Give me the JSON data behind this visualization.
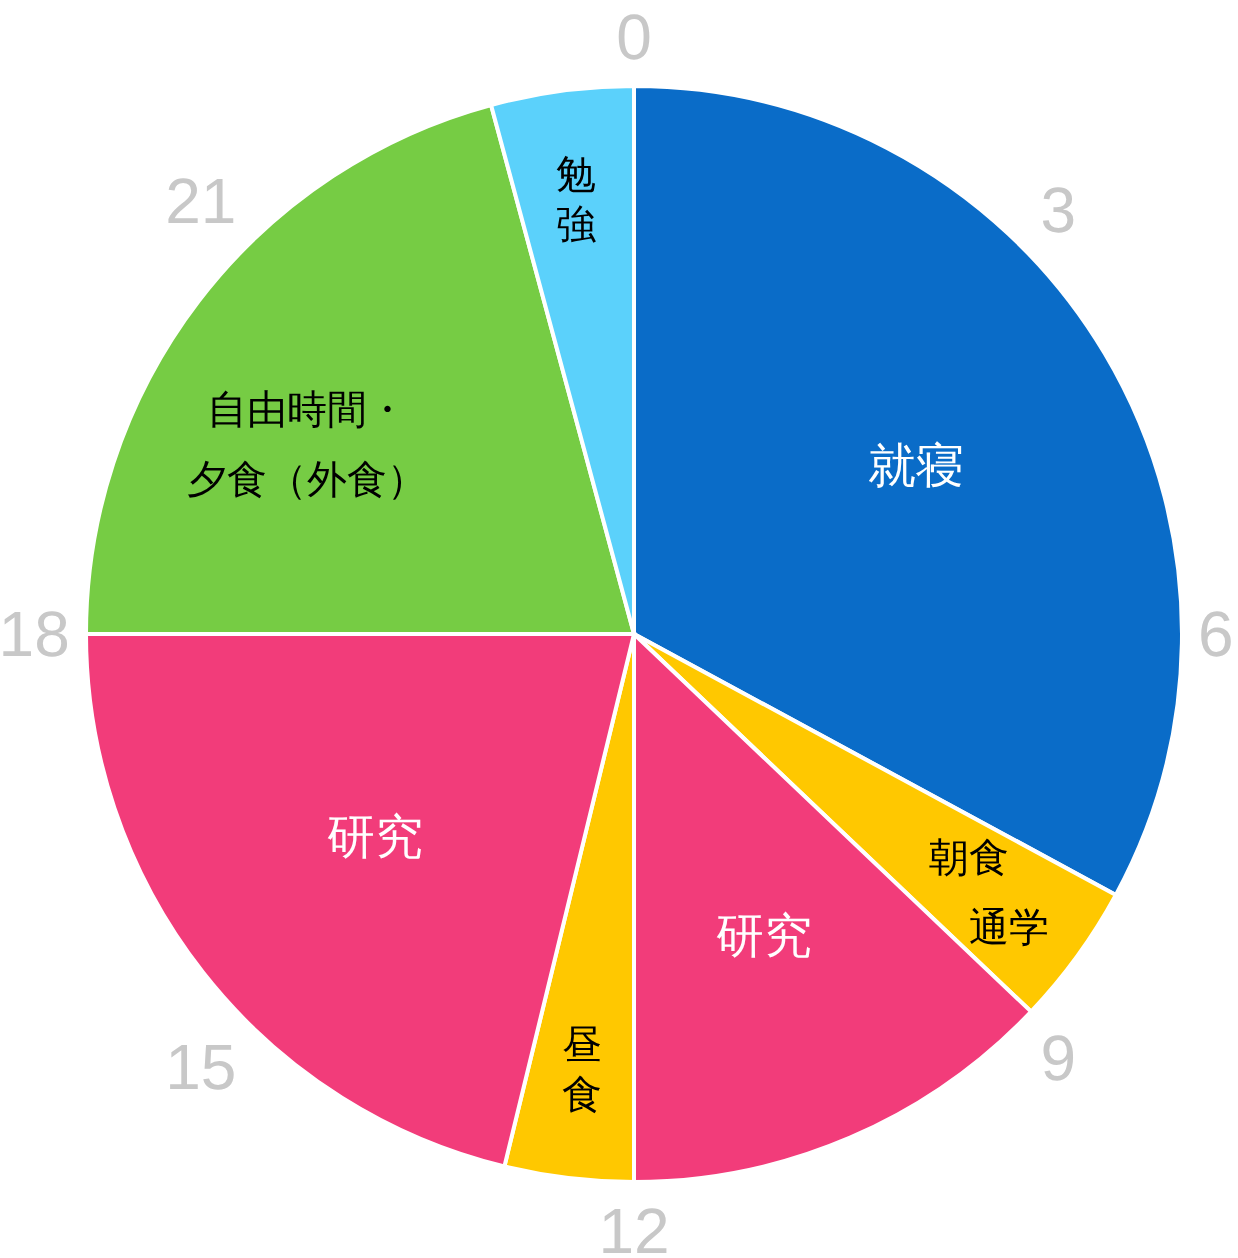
{
  "chart_data": {
    "type": "pie",
    "categories": [
      "就寝",
      "朝食通学",
      "研究",
      "昼食",
      "研究",
      "自由時間・夕食（外食）",
      "勉強"
    ],
    "values": [
      32.9,
      4.2,
      12.9,
      3.8,
      21.2,
      20.8,
      4.2
    ],
    "colors": [
      "#0a6cc8",
      "#ffc800",
      "#f23c7a",
      "#ffc800",
      "#f23c7a",
      "#76cc44",
      "#5bd1fb"
    ],
    "annotations": [
      "0",
      "3",
      "6",
      "9",
      "12",
      "15",
      "18",
      "21"
    ]
  }
}
